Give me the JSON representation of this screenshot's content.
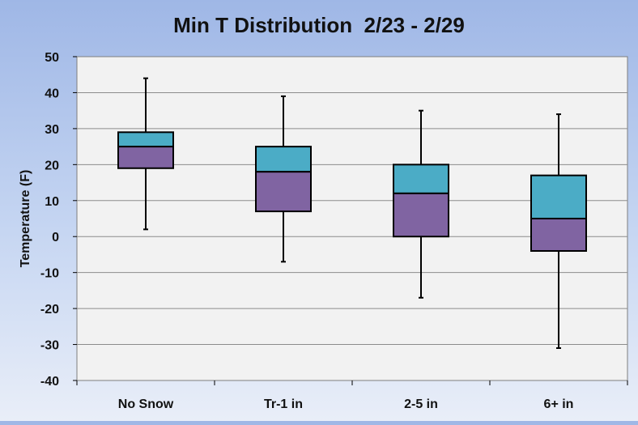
{
  "chart_data": {
    "type": "box",
    "title": "Min T Distribution  2/23 - 2/29",
    "xlabel": "",
    "ylabel": "Temperature (F)",
    "ylim": [
      -40,
      50
    ],
    "y_ticks": [
      50,
      40,
      30,
      20,
      10,
      0,
      -10,
      -20,
      -30,
      -40
    ],
    "grid": true,
    "categories": [
      "No Snow",
      "Tr-1 in",
      "2-5 in",
      "6+ in"
    ],
    "boxes": [
      {
        "min": 2,
        "q1": 19,
        "median": 25,
        "q3": 29,
        "max": 44
      },
      {
        "min": -7,
        "q1": 7,
        "median": 18,
        "q3": 25,
        "max": 39
      },
      {
        "min": -17,
        "q1": 0,
        "median": 12,
        "q3": 20,
        "max": 35
      },
      {
        "min": -31,
        "q1": -4,
        "median": 5,
        "q3": 17,
        "max": 34
      }
    ],
    "colors": {
      "lower_box": "#8064a2",
      "upper_box": "#4bacc6",
      "plot_bg": "#f2f2f2",
      "grid": "#8c8c8c",
      "whisker": "#000000"
    }
  }
}
